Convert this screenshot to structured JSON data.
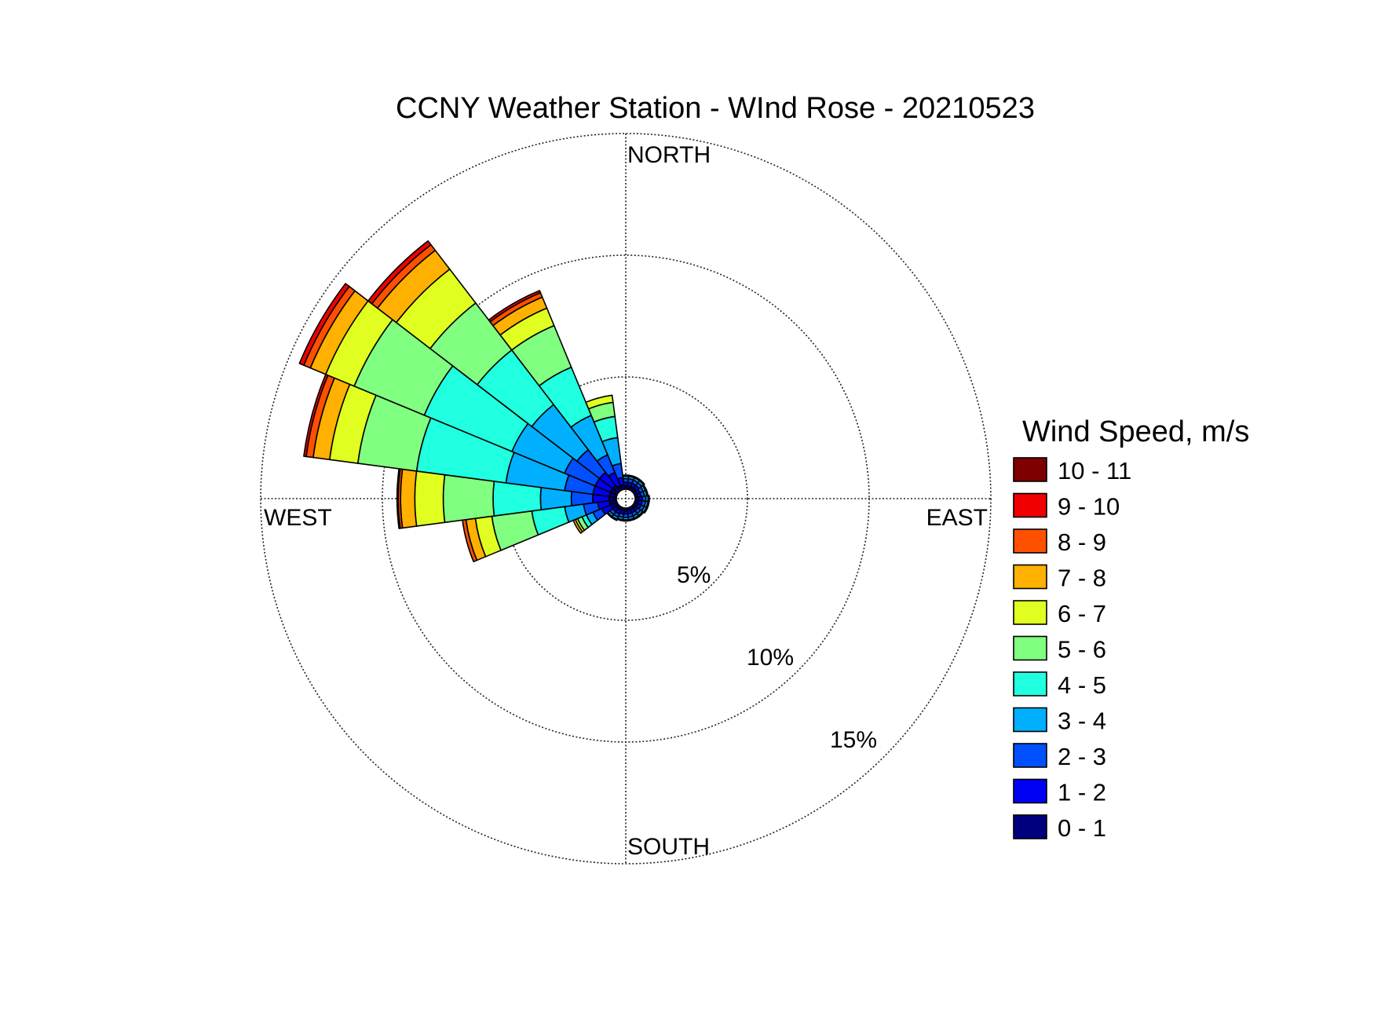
{
  "chart_data": {
    "type": "windrose",
    "title": "CCNY Weather Station - WInd Rose - 20210523",
    "direction_labels": {
      "north": "NORTH",
      "east": "EAST",
      "south": "SOUTH",
      "west": "WEST"
    },
    "radial_ticks": [
      "5%",
      "10%",
      "15%"
    ],
    "radial_tick_values": [
      5,
      10,
      15
    ],
    "rmax": 15,
    "legend_title": "Wind Speed, m/s",
    "legend_position": "right",
    "speed_bins": [
      {
        "label": "0 - 1",
        "color": "#00007f"
      },
      {
        "label": "1 - 2",
        "color": "#0000f5"
      },
      {
        "label": "2 - 3",
        "color": "#0050ff"
      },
      {
        "label": "3 - 4",
        "color": "#00b0ff"
      },
      {
        "label": "4 - 5",
        "color": "#20ffdf"
      },
      {
        "label": "5 - 6",
        "color": "#80ff80"
      },
      {
        "label": "6 - 7",
        "color": "#e0ff20"
      },
      {
        "label": "7 - 8",
        "color": "#ffb000"
      },
      {
        "label": "8 - 9",
        "color": "#ff5000"
      },
      {
        "label": "9 - 10",
        "color": "#f00000"
      },
      {
        "label": "10 - 11",
        "color": "#7f0000"
      }
    ],
    "directions": [
      {
        "deg": 0,
        "cum": [
          0.15,
          0.3,
          0.45,
          0.55,
          0.6
        ]
      },
      {
        "deg": 15,
        "cum": [
          0.15,
          0.3,
          0.45,
          0.55,
          0.6
        ]
      },
      {
        "deg": 30,
        "cum": [
          0.15,
          0.3,
          0.45,
          0.55,
          0.6
        ]
      },
      {
        "deg": 45,
        "cum": [
          0.15,
          0.3,
          0.45,
          0.55,
          0.6
        ]
      },
      {
        "deg": 60,
        "cum": [
          0.12,
          0.25,
          0.4,
          0.5,
          0.55
        ]
      },
      {
        "deg": 75,
        "cum": [
          0.12,
          0.25,
          0.4,
          0.5,
          0.55
        ]
      },
      {
        "deg": 90,
        "cum": [
          0.15,
          0.3,
          0.45,
          0.55,
          0.6
        ]
      },
      {
        "deg": 105,
        "cum": [
          0.15,
          0.3,
          0.45,
          0.55,
          0.6
        ]
      },
      {
        "deg": 120,
        "cum": [
          0.15,
          0.3,
          0.45,
          0.55,
          0.6
        ]
      },
      {
        "deg": 135,
        "cum": [
          0.12,
          0.25,
          0.4,
          0.5,
          0.55
        ]
      },
      {
        "deg": 150,
        "cum": [
          0.12,
          0.25,
          0.4,
          0.5,
          0.55
        ]
      },
      {
        "deg": 165,
        "cum": [
          0.12,
          0.25,
          0.4,
          0.5,
          0.55
        ]
      },
      {
        "deg": 180,
        "cum": [
          0.12,
          0.25,
          0.4,
          0.5,
          0.55
        ]
      },
      {
        "deg": 195,
        "cum": [
          0.12,
          0.25,
          0.4,
          0.5,
          0.55
        ]
      },
      {
        "deg": 210,
        "cum": [
          0.15,
          0.3,
          0.45,
          0.55,
          0.6
        ]
      },
      {
        "deg": 225,
        "cum": [
          0.15,
          0.3,
          0.45,
          0.55,
          0.6
        ]
      },
      {
        "deg": 240,
        "cum": [
          0.3,
          0.7,
          1.1,
          1.4,
          1.6,
          1.8,
          1.9,
          2.0
        ]
      },
      {
        "deg": 255,
        "cum": [
          0.3,
          0.8,
          1.4,
          2.2,
          3.6,
          5.3,
          6.0,
          6.4,
          6.55
        ]
      },
      {
        "deg": 270,
        "cum": [
          0.3,
          1.0,
          1.9,
          3.2,
          5.2,
          7.3,
          8.5,
          9.1,
          9.2,
          9.25
        ]
      },
      {
        "deg": 285,
        "cum": [
          0.3,
          1.0,
          2.2,
          4.7,
          8.5,
          11.0,
          12.2,
          12.9,
          13.2,
          13.3
        ]
      },
      {
        "deg": 300,
        "cum": [
          0.3,
          1.0,
          2.4,
          4.8,
          8.8,
          12.0,
          13.3,
          14.0,
          14.3,
          14.5
        ]
      },
      {
        "deg": 315,
        "cum": [
          0.3,
          1.0,
          2.2,
          4.6,
          7.5,
          10.0,
          11.8,
          12.8,
          13.1,
          13.3
        ]
      },
      {
        "deg": 330,
        "cum": [
          0.2,
          0.8,
          1.6,
          3.4,
          5.6,
          7.5,
          8.3,
          8.8,
          9.0,
          9.1
        ]
      },
      {
        "deg": 345,
        "cum": [
          0.2,
          0.5,
          1.1,
          2.2,
          3.1,
          3.7,
          4.0
        ]
      }
    ],
    "grid": true
  }
}
